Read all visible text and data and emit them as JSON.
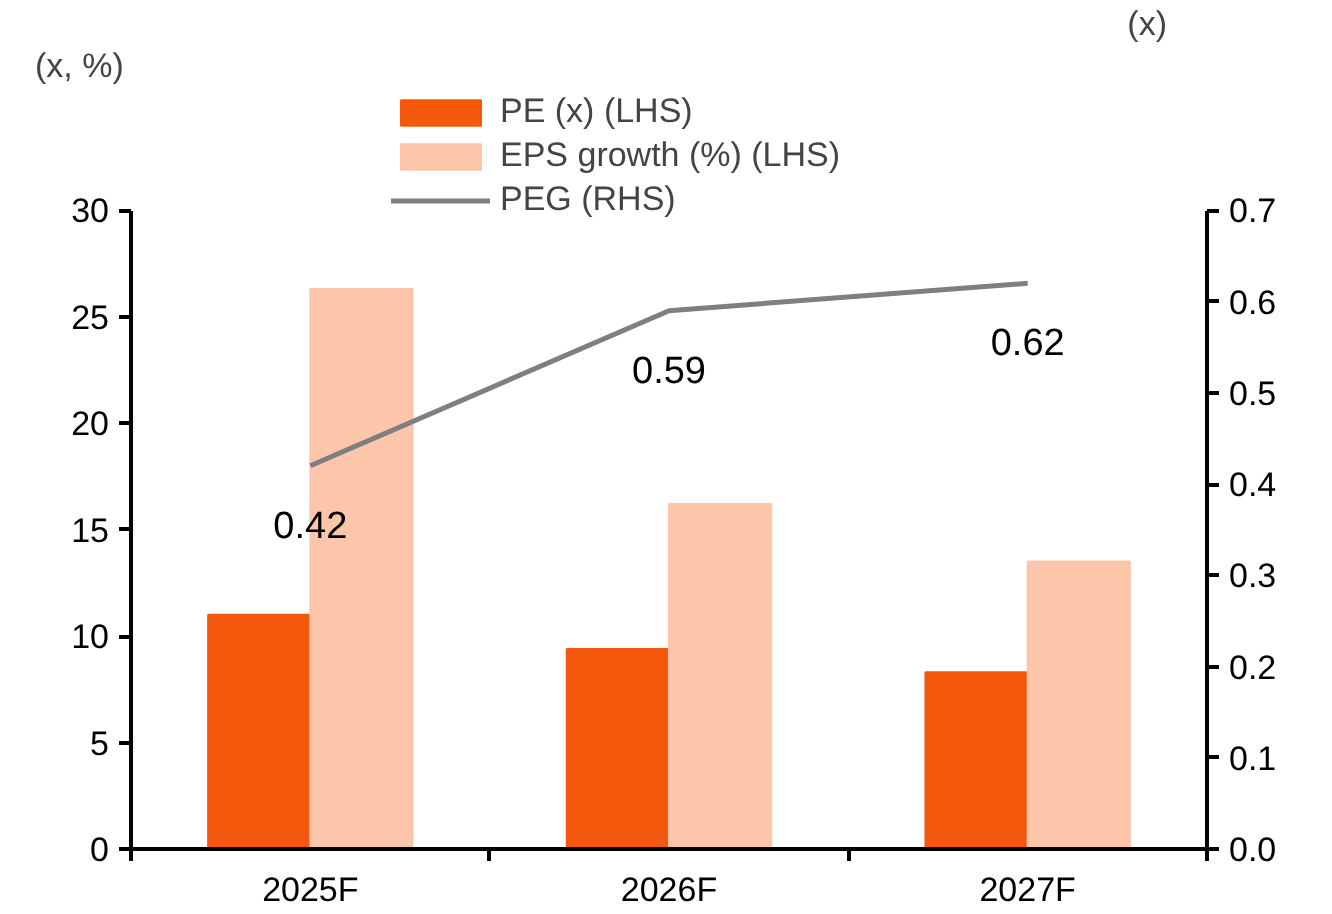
{
  "chart_data": {
    "type": "bar",
    "categories": [
      "2025F",
      "2026F",
      "2027F"
    ],
    "ylabel": "(x, %)",
    "y2label": "(x)",
    "series": [
      {
        "name": "PE (x) (LHS)",
        "color": "#f4580c",
        "values": [
          11.0,
          9.4,
          8.3
        ]
      },
      {
        "name": "EPS growth (%) (LHS)",
        "color": "#fdc5aa",
        "values": [
          26.3,
          16.2,
          13.5
        ]
      },
      {
        "name": "PEG (RHS)",
        "type": "line",
        "axis": "y2",
        "color": "#7f7f7f",
        "values": [
          0.42,
          0.59,
          0.62
        ],
        "value_labels": [
          "0.42",
          "0.59",
          "0.62"
        ]
      }
    ],
    "ylim": [
      0,
      30
    ],
    "yticks": [
      0,
      5,
      10,
      15,
      20,
      25,
      30
    ],
    "y2lim": [
      0,
      0.7
    ],
    "y2ticks": [
      {
        "value": 0,
        "label": "0.0"
      },
      0.1,
      0.2,
      0.3,
      0.4,
      0.5,
      0.6,
      0.7
    ],
    "grid": false,
    "legend": "top"
  }
}
